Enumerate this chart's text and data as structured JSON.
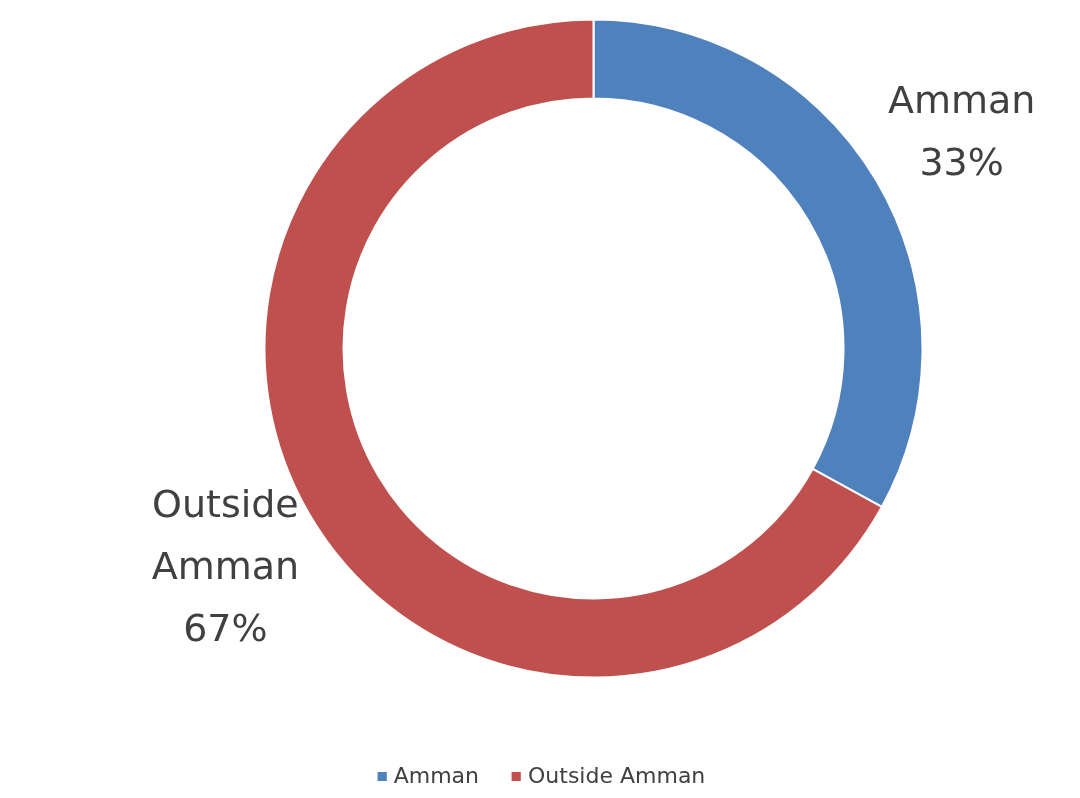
{
  "chart_data": {
    "type": "donut",
    "categories": [
      "Amman",
      "Outside Amman"
    ],
    "values": [
      33,
      67
    ],
    "colors": [
      "#4f81bd",
      "#c0504d"
    ],
    "value_labels": [
      "33%",
      "67%"
    ],
    "legend": "bottom"
  }
}
